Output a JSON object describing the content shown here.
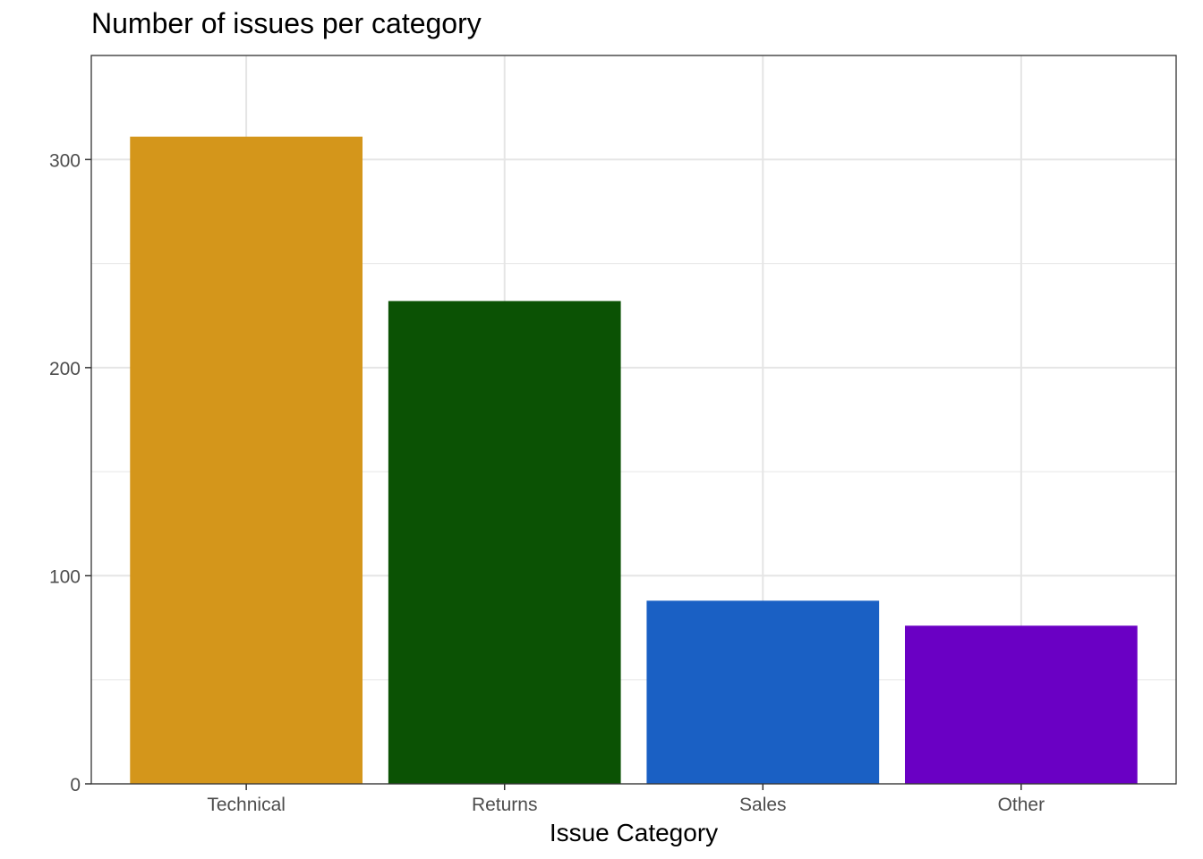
{
  "chart_data": {
    "type": "bar",
    "title": "Number of issues per category",
    "xlabel": "Issue Category",
    "ylabel": "",
    "categories": [
      "Technical",
      "Returns",
      "Sales",
      "Other"
    ],
    "values": [
      311,
      232,
      88,
      76
    ],
    "colors": [
      "#D4961B",
      "#0B5204",
      "#1A60C4",
      "#6A00C4"
    ],
    "ylim": [
      0,
      350
    ],
    "yticks": [
      0,
      100,
      200,
      300
    ],
    "ytick_labels": [
      "0",
      "100",
      "200",
      "300"
    ],
    "grid": true,
    "legend": "none"
  }
}
